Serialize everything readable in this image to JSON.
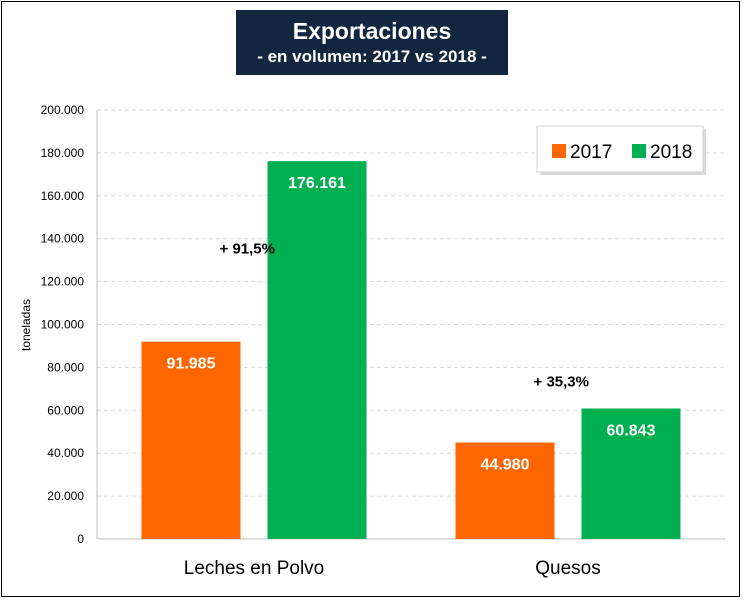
{
  "chart_data": {
    "type": "bar",
    "title": "Exportaciones",
    "subtitle": "- en volumen: 2017 vs 2018 -",
    "ylabel": "toneladas",
    "xlabel": "",
    "ylim": [
      0,
      200000
    ],
    "yticks": [
      "0",
      "20.000",
      "40.000",
      "60.000",
      "80.000",
      "100.000",
      "120.000",
      "140.000",
      "160.000",
      "180.000",
      "200.000"
    ],
    "categories": [
      "Leches en Polvo",
      "Quesos"
    ],
    "series": [
      {
        "name": "2017",
        "color": "#ff6600",
        "values": [
          91985,
          44980
        ],
        "labels": [
          "91.985",
          "44.980"
        ]
      },
      {
        "name": "2018",
        "color": "#00b050",
        "values": [
          176161,
          60843
        ],
        "labels": [
          "176.161",
          "60.843"
        ]
      }
    ],
    "annotations": [
      "+ 91,5%",
      "+ 35,3%"
    ],
    "legend_position": "top-right"
  }
}
